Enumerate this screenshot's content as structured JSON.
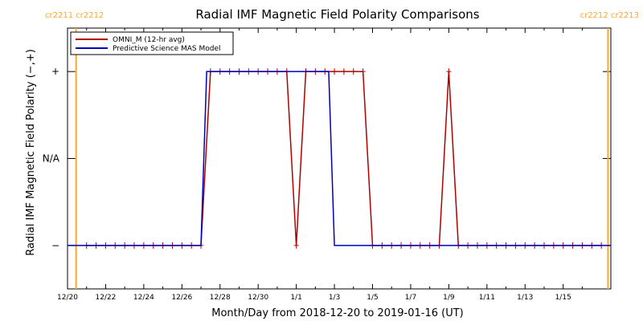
{
  "chart_data": {
    "type": "line",
    "title": "Radial IMF Magnetic Field Polarity Comparisons",
    "xlabel": "Month/Day from 2018-12-20 to 2019-01-16 (UT)",
    "ylabel": "Radial IMF Magnetic Field Polarity (−,+)",
    "x_start": "2018-12-20",
    "x_end": "2019-01-16",
    "xlim_days": [
      0,
      28.5
    ],
    "ylim": [
      -1.5,
      1.5
    ],
    "x_ticks": [
      {
        "day": 0,
        "label": "12/20"
      },
      {
        "day": 2,
        "label": "12/22"
      },
      {
        "day": 4,
        "label": "12/24"
      },
      {
        "day": 6,
        "label": "12/26"
      },
      {
        "day": 8,
        "label": "12/28"
      },
      {
        "day": 10,
        "label": "12/30"
      },
      {
        "day": 12,
        "label": "1/1"
      },
      {
        "day": 14,
        "label": "1/3"
      },
      {
        "day": 16,
        "label": "1/5"
      },
      {
        "day": 18,
        "label": "1/7"
      },
      {
        "day": 20,
        "label": "1/9"
      },
      {
        "day": 22,
        "label": "1/11"
      },
      {
        "day": 24,
        "label": "1/13"
      },
      {
        "day": 26,
        "label": "1/15"
      }
    ],
    "y_ticks": [
      {
        "value": 1,
        "label": "+"
      },
      {
        "value": 0,
        "label": "N/A"
      },
      {
        "value": -1,
        "label": "−"
      }
    ],
    "carrington": {
      "color": "#ffa630",
      "left_day": 0.45,
      "right_day": 28.35,
      "left_labels": [
        "cr2211",
        "cr2212"
      ],
      "right_labels": [
        "cr2212",
        "cr2213"
      ]
    },
    "legend": {
      "placement": "top-left",
      "entries": [
        {
          "name": "OMNI_M (12-hr avg)",
          "color": "#b00000"
        },
        {
          "name": "Predictive Science MAS Model",
          "color": "#0000c0"
        }
      ]
    },
    "series": [
      {
        "name": "OMNI_M (12-hr avg)",
        "color": "#b00000",
        "markers": true,
        "x": [
          1.0,
          1.5,
          2.0,
          2.5,
          3.0,
          3.5,
          4.0,
          4.5,
          5.0,
          5.5,
          6.0,
          6.5,
          7.0,
          7.5,
          8.0,
          8.5,
          9.0,
          9.5,
          10.0,
          10.5,
          11.0,
          11.5,
          12.0,
          12.5,
          13.0,
          13.5,
          14.0,
          14.5,
          15.0,
          15.5,
          16.0,
          16.5,
          17.0,
          17.5,
          18.0,
          18.5,
          19.0,
          19.5,
          20.0,
          20.5,
          21.0,
          21.5,
          22.0,
          22.5,
          23.0,
          23.5,
          24.0,
          24.5,
          25.0,
          25.5,
          26.0,
          26.5,
          27.0,
          27.5,
          28.0
        ],
        "y": [
          -1,
          -1,
          -1,
          -1,
          -1,
          -1,
          -1,
          -1,
          -1,
          -1,
          -1,
          -1,
          -1,
          1,
          1,
          1,
          1,
          1,
          1,
          1,
          1,
          1,
          -1,
          1,
          1,
          1,
          1,
          1,
          1,
          1,
          -1,
          -1,
          -1,
          -1,
          -1,
          -1,
          -1,
          -1,
          1,
          -1,
          -1,
          -1,
          -1,
          -1,
          -1,
          -1,
          -1,
          -1,
          -1,
          -1,
          -1,
          -1,
          -1,
          -1,
          -1
        ]
      },
      {
        "name": "Predictive Science MAS Model",
        "color": "#0000c0",
        "markers": false,
        "x": [
          0,
          7.0,
          7.3,
          13.7,
          14.0,
          28.5
        ],
        "y": [
          -1,
          -1,
          1,
          1,
          -1,
          -1
        ]
      }
    ]
  }
}
